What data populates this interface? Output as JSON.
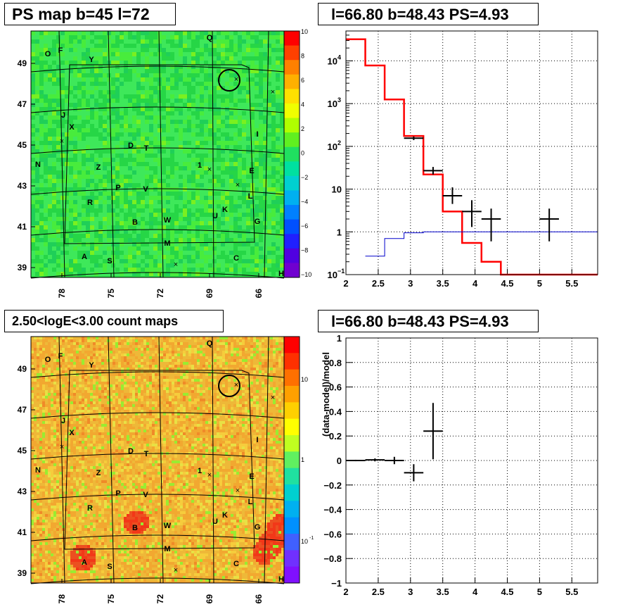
{
  "titles": {
    "map_top": "PS map b=45 l=72",
    "spectrum_top": "l=66.80 b=48.43 PS=4.93",
    "map_bottom": "2.50<logE<3.00 count maps",
    "residual_bottom": "l=66.80 b=48.43 PS=4.93"
  },
  "colors": {
    "map_top_bg": "#2ee04a",
    "map_bottom_bg": "#f0a030",
    "model_line": "#ff0000",
    "background_line": "#0000cc",
    "data": "#000000"
  },
  "map_labels": {
    "y_ticks": [
      "49",
      "47",
      "45",
      "43",
      "41",
      "39"
    ],
    "x_ticks": [
      "78",
      "75",
      "72",
      "69",
      "66"
    ],
    "sources": [
      "Q",
      "O",
      "F",
      "Y",
      "J",
      "X",
      "I",
      "D",
      "T",
      "N",
      "Z",
      "1",
      "E",
      "P",
      "V",
      "R",
      "K",
      "U",
      "L",
      "G",
      "B",
      "W",
      "M",
      "A",
      "S",
      "C",
      "H"
    ],
    "colorbar_top_ticks": [
      "10",
      "8",
      "6",
      "4",
      "2",
      "0",
      "−2",
      "−4",
      "−6",
      "−8",
      "−10"
    ],
    "colorbar_bottom_ticks": [
      "10",
      "1",
      "10",
      "-1"
    ]
  },
  "chart_data": [
    {
      "type": "line",
      "title": "l=66.80 b=48.43 PS=4.93",
      "xlim": [
        2,
        5.9
      ],
      "ylim": [
        0.1,
        50000
      ],
      "yscale": "log",
      "x_ticks": [
        "2",
        "2.5",
        "3",
        "3.5",
        "4",
        "4.5",
        "5",
        "5.5"
      ],
      "y_ticks": [
        "10^-1",
        "1",
        "10",
        "10^2",
        "10^3",
        "10^4"
      ],
      "grid": true,
      "series": [
        {
          "kind": "step",
          "color": "red",
          "edges": [
            2,
            2.3,
            2.6,
            2.9,
            3.2,
            3.5,
            3.8,
            4.1,
            4.4,
            5.9
          ],
          "values": [
            32000,
            7800,
            1250,
            175,
            22,
            3,
            0.55,
            0.2,
            0.1
          ]
        },
        {
          "kind": "step",
          "color": "blue",
          "edges": [
            2.3,
            2.6,
            2.9,
            3.2,
            5.9
          ],
          "values": [
            0.27,
            0.7,
            0.95,
            1.0
          ]
        }
      ],
      "points": [
        {
          "x": 3.05,
          "xerr": 0.15,
          "y": 155,
          "ylo": 140,
          "yhi": 170
        },
        {
          "x": 3.35,
          "xerr": 0.15,
          "y": 27,
          "ylo": 22,
          "yhi": 33
        },
        {
          "x": 3.65,
          "xerr": 0.15,
          "y": 7,
          "ylo": 4.5,
          "yhi": 11
        },
        {
          "x": 3.95,
          "xerr": 0.15,
          "y": 3,
          "ylo": 1.3,
          "yhi": 5.5
        },
        {
          "x": 4.25,
          "xerr": 0.15,
          "y": 2,
          "ylo": 0.6,
          "yhi": 3.5
        },
        {
          "x": 5.15,
          "xerr": 0.15,
          "y": 2,
          "ylo": 0.6,
          "yhi": 3.5
        }
      ]
    },
    {
      "type": "scatter",
      "title": "l=66.80 b=48.43 PS=4.93",
      "ylabel": "(data-model)/model",
      "xlim": [
        2,
        5.9
      ],
      "ylim": [
        -1,
        1
      ],
      "x_ticks": [
        "2",
        "2.5",
        "3",
        "3.5",
        "4",
        "4.5",
        "5",
        "5.5"
      ],
      "y_ticks": [
        "1",
        "0.8",
        "0.6",
        "0.4",
        "0.2",
        "0",
        "−0.2",
        "−0.4",
        "−0.6",
        "−0.8",
        "−1"
      ],
      "grid": true,
      "points": [
        {
          "x": 2.15,
          "xerr": 0.15,
          "y": 0.0,
          "yerr": 0.006
        },
        {
          "x": 2.45,
          "xerr": 0.15,
          "y": 0.005,
          "yerr": 0.012
        },
        {
          "x": 2.75,
          "xerr": 0.15,
          "y": 0.0,
          "yerr": 0.03
        },
        {
          "x": 3.05,
          "xerr": 0.15,
          "y": -0.1,
          "yerr": 0.07
        },
        {
          "x": 3.35,
          "xerr": 0.15,
          "y": 0.24,
          "yerr": 0.23
        }
      ]
    }
  ]
}
